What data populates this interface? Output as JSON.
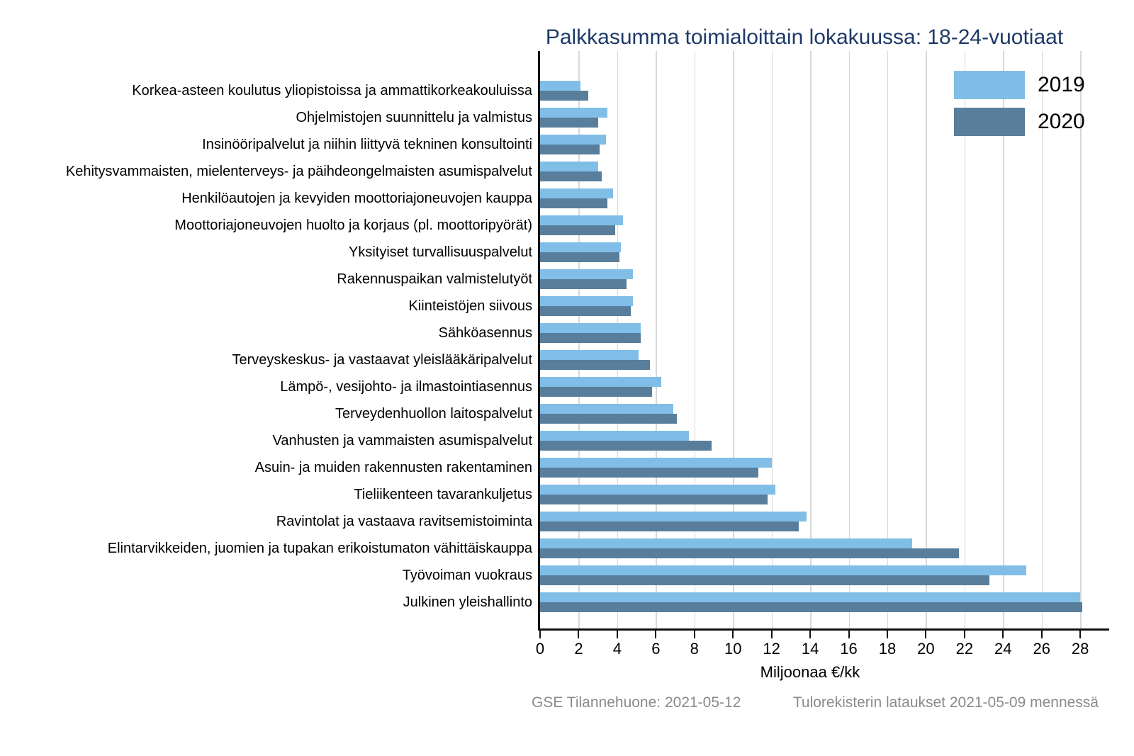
{
  "title": "Palkkasumma toimialoittain lokakuussa: 18-24-vuotiaat",
  "footer": {
    "left": "GSE Tilannehuone: 2021-05-12",
    "right": "Tulorekisterin lataukset 2021-05-09 mennessä"
  },
  "colors": {
    "series_2019": "#80bee8",
    "series_2020": "#587e9b",
    "title_text": "#1f3a68",
    "gridline": "#d8d8d8",
    "axis": "#111111",
    "footer_text": "#8a8a8a"
  },
  "chart_data": {
    "type": "bar",
    "orientation": "horizontal",
    "title": "Palkkasumma toimialoittain lokakuussa: 18-24-vuotiaat",
    "xlabel": "Miljoonaa €/kk",
    "ylabel": "",
    "xlim": [
      0,
      29.5
    ],
    "xticks": [
      0,
      2,
      4,
      6,
      8,
      10,
      12,
      14,
      16,
      18,
      20,
      22,
      24,
      26,
      28
    ],
    "grid": true,
    "legend_position": "upper right",
    "categories": [
      "Korkea-asteen koulutus yliopistoissa ja ammattikorkeakouluissa",
      "Ohjelmistojen suunnittelu ja valmistus",
      "Insinööripalvelut ja niihin liittyvä tekninen konsultointi",
      "Kehitysvammaisten, mielenterveys- ja päihdeongelmaisten asumispalvelut",
      "Henkilöautojen ja kevyiden moottoriajoneuvojen kauppa",
      "Moottoriajoneuvojen huolto ja korjaus (pl. moottoripyörät)",
      "Yksityiset turvallisuuspalvelut",
      "Rakennuspaikan valmistelutyöt",
      "Kiinteistöjen siivous",
      "Sähköasennus",
      "Terveyskeskus- ja vastaavat yleislääkäripalvelut",
      "Lämpö-, vesijohto- ja ilmastointiasennus",
      "Terveydenhuollon laitospalvelut",
      "Vanhusten ja vammaisten asumispalvelut",
      "Asuin- ja muiden rakennusten rakentaminen",
      "Tieliikenteen tavarankuljetus",
      "Ravintolat ja vastaava ravitsemistoiminta",
      "Elintarvikkeiden, juomien ja tupakan erikoistumaton vähittäiskauppa",
      "Työvoiman vuokraus",
      "Julkinen yleishallinto"
    ],
    "series": [
      {
        "name": "2019",
        "color": "#80bee8",
        "values": [
          2.1,
          3.5,
          3.4,
          3.0,
          3.8,
          4.3,
          4.2,
          4.8,
          4.8,
          5.2,
          5.1,
          6.3,
          6.9,
          7.7,
          12.0,
          12.2,
          13.8,
          19.3,
          25.2,
          28.0
        ]
      },
      {
        "name": "2020",
        "color": "#587e9b",
        "values": [
          2.5,
          3.0,
          3.1,
          3.2,
          3.5,
          3.9,
          4.1,
          4.5,
          4.7,
          5.2,
          5.7,
          5.8,
          7.1,
          8.9,
          11.3,
          11.8,
          13.4,
          21.7,
          23.3,
          28.1
        ]
      }
    ]
  }
}
